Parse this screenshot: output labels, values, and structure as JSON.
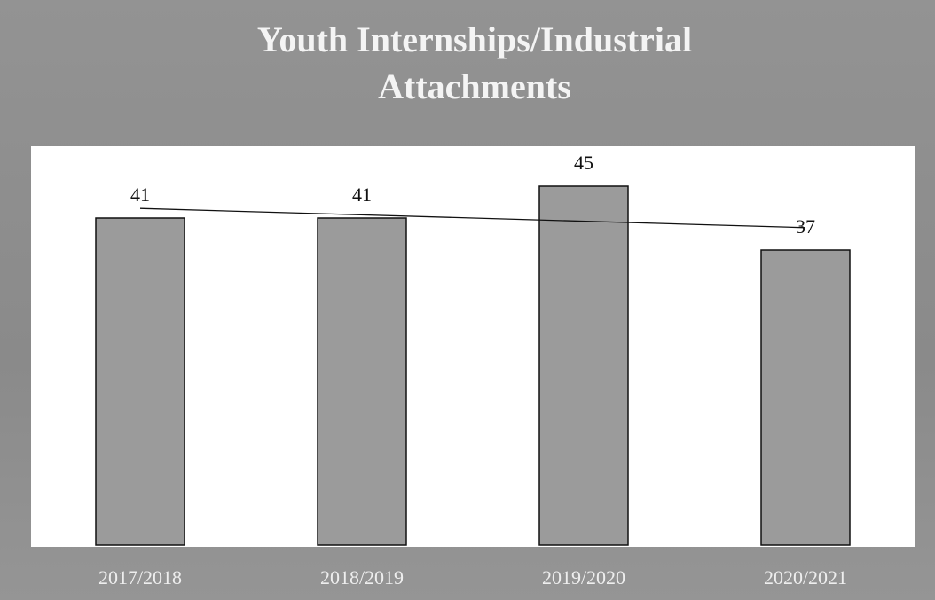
{
  "chart_data": {
    "type": "bar",
    "title": "Youth Internships/Industrial Attachments",
    "categories": [
      "2017/2018",
      "2018/2019",
      "2019/2020",
      "2020/2021"
    ],
    "values": [
      41,
      41,
      45,
      37
    ],
    "color": "#9b9b9b",
    "trendline": true
  }
}
